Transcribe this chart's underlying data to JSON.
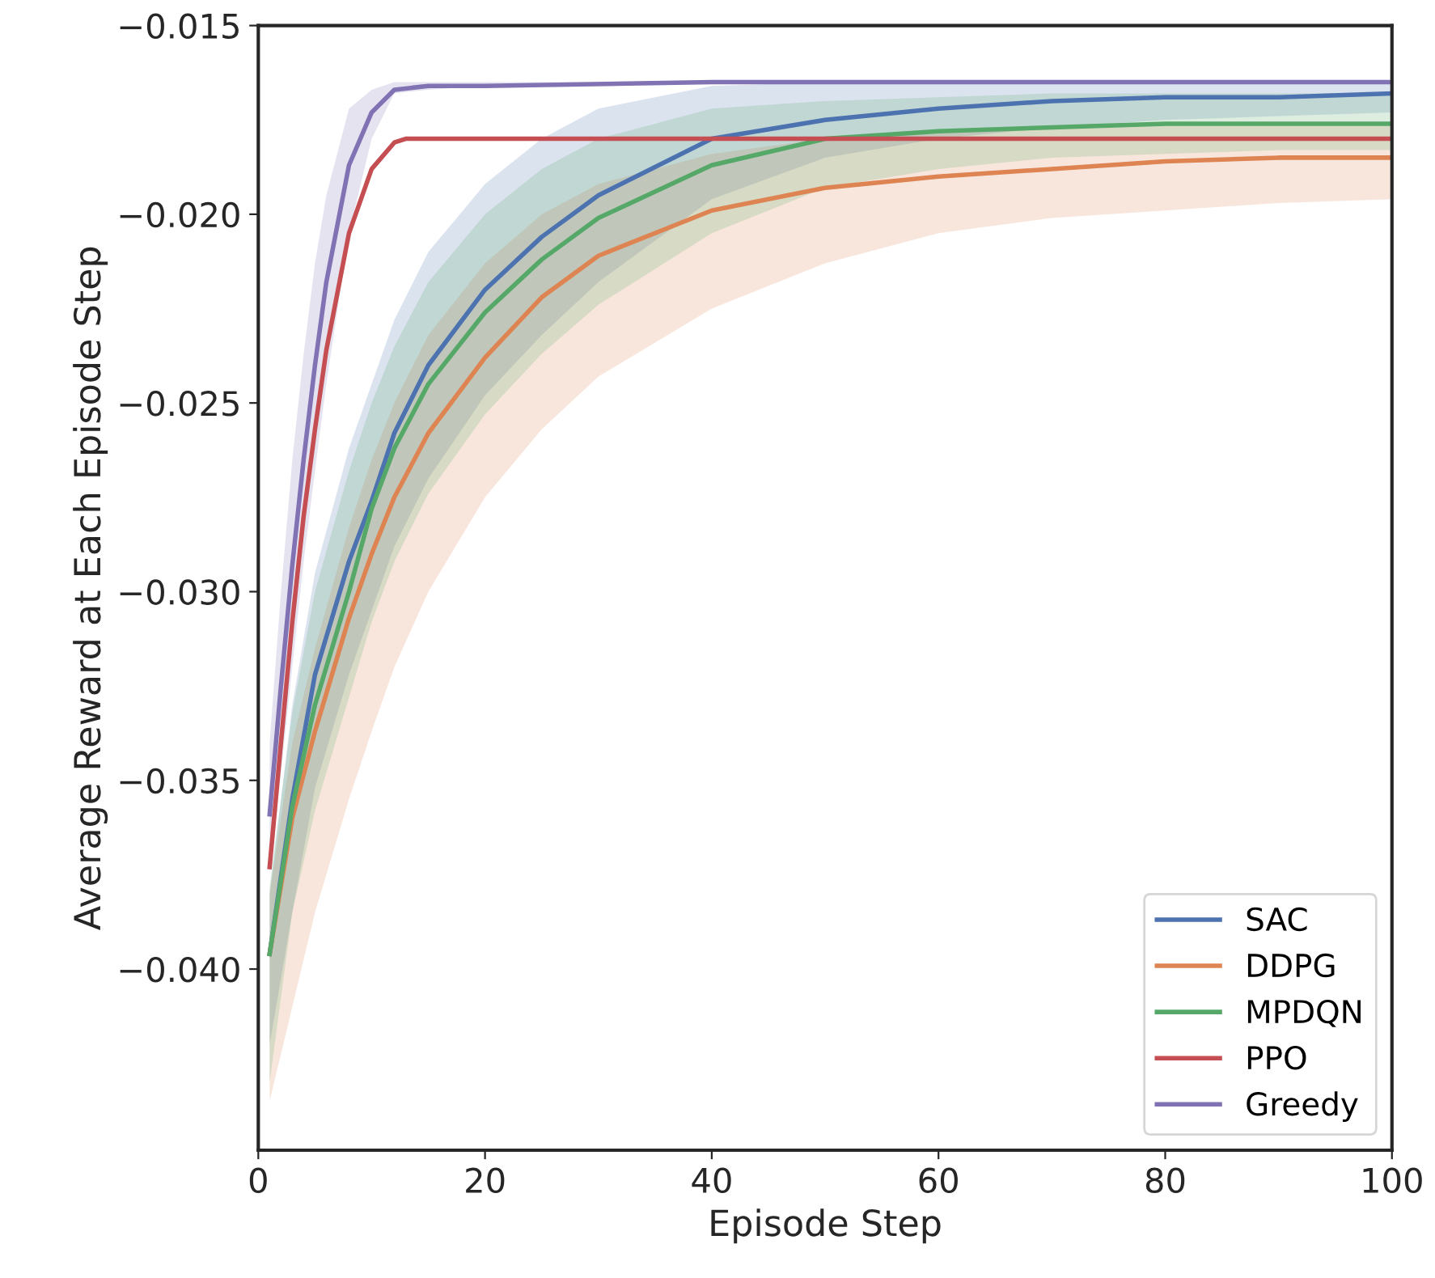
{
  "chart_data": {
    "type": "line",
    "xlabel": "Episode Step",
    "ylabel": "Average Reward at Each Episode Step",
    "xlim": [
      0,
      100
    ],
    "ylim": [
      -0.0448,
      -0.015
    ],
    "xticks": [
      0,
      20,
      40,
      60,
      80,
      100
    ],
    "yticks": [
      {
        "value": -0.04,
        "label": "−0.040"
      },
      {
        "value": -0.035,
        "label": "−0.035"
      },
      {
        "value": -0.03,
        "label": "−0.030"
      },
      {
        "value": -0.025,
        "label": "−0.025"
      },
      {
        "value": -0.02,
        "label": "−0.020"
      },
      {
        "value": -0.015,
        "label": "−0.015"
      }
    ],
    "grid": false,
    "legend": "bottom right",
    "marker": "none",
    "line_style": "solid",
    "series": [
      {
        "name": "SAC",
        "color": "#4c72b0",
        "x": [
          1,
          3,
          5,
          8,
          10,
          12,
          15,
          20,
          25,
          30,
          40,
          50,
          60,
          70,
          80,
          90,
          100
        ],
        "values": [
          -0.0396,
          -0.0355,
          -0.0322,
          -0.0292,
          -0.0276,
          -0.0258,
          -0.024,
          -0.022,
          -0.0206,
          -0.0195,
          -0.018,
          -0.0175,
          -0.0172,
          -0.017,
          -0.0169,
          -0.0169,
          -0.0168
        ],
        "upper": [
          -0.038,
          -0.033,
          -0.0295,
          -0.0262,
          -0.0245,
          -0.0228,
          -0.021,
          -0.0192,
          -0.018,
          -0.0172,
          -0.0166,
          -0.0165,
          -0.0165,
          -0.0165,
          -0.0165,
          -0.0165,
          -0.0165
        ],
        "lower": [
          -0.042,
          -0.0385,
          -0.0352,
          -0.0322,
          -0.0305,
          -0.0288,
          -0.027,
          -0.0248,
          -0.0232,
          -0.0218,
          -0.0196,
          -0.0185,
          -0.018,
          -0.0177,
          -0.0175,
          -0.0174,
          -0.0173
        ]
      },
      {
        "name": "DDPG",
        "color": "#dd8452",
        "x": [
          1,
          3,
          5,
          8,
          10,
          12,
          15,
          20,
          25,
          30,
          40,
          50,
          60,
          70,
          80,
          90,
          100
        ],
        "values": [
          -0.0396,
          -0.036,
          -0.0337,
          -0.0307,
          -0.029,
          -0.0275,
          -0.0258,
          -0.0238,
          -0.0222,
          -0.0211,
          -0.0199,
          -0.0193,
          -0.019,
          -0.0188,
          -0.0186,
          -0.0185,
          -0.0185
        ],
        "upper": [
          -0.038,
          -0.034,
          -0.0315,
          -0.0283,
          -0.0265,
          -0.025,
          -0.0232,
          -0.0213,
          -0.02,
          -0.0192,
          -0.0184,
          -0.018,
          -0.0178,
          -0.0177,
          -0.0176,
          -0.0176,
          -0.0176
        ],
        "lower": [
          -0.0435,
          -0.041,
          -0.0385,
          -0.0355,
          -0.0337,
          -0.032,
          -0.03,
          -0.0275,
          -0.0257,
          -0.0243,
          -0.0225,
          -0.0213,
          -0.0205,
          -0.0201,
          -0.0199,
          -0.0197,
          -0.0196
        ]
      },
      {
        "name": "MPDQN",
        "color": "#55a868",
        "x": [
          1,
          3,
          5,
          8,
          10,
          12,
          15,
          20,
          25,
          30,
          40,
          50,
          60,
          70,
          80,
          90,
          100
        ],
        "values": [
          -0.0396,
          -0.0357,
          -0.033,
          -0.03,
          -0.0278,
          -0.0262,
          -0.0245,
          -0.0226,
          -0.0212,
          -0.0201,
          -0.0187,
          -0.018,
          -0.0178,
          -0.0177,
          -0.0176,
          -0.0176,
          -0.0176
        ],
        "upper": [
          -0.0378,
          -0.0332,
          -0.03,
          -0.0268,
          -0.025,
          -0.0235,
          -0.0218,
          -0.02,
          -0.0188,
          -0.018,
          -0.0172,
          -0.017,
          -0.0169,
          -0.0168,
          -0.0168,
          -0.0168,
          -0.0168
        ],
        "lower": [
          -0.043,
          -0.0385,
          -0.0358,
          -0.0328,
          -0.0308,
          -0.0292,
          -0.0274,
          -0.0253,
          -0.0237,
          -0.0224,
          -0.0205,
          -0.0193,
          -0.0188,
          -0.0185,
          -0.0184,
          -0.0183,
          -0.0183
        ]
      },
      {
        "name": "PPO",
        "color": "#c44e52",
        "x": [
          1,
          2,
          3,
          4,
          5,
          6,
          8,
          10,
          12,
          13,
          20,
          40,
          60,
          80,
          100
        ],
        "values": [
          -0.0373,
          -0.034,
          -0.0308,
          -0.028,
          -0.0257,
          -0.0236,
          -0.0205,
          -0.0188,
          -0.0181,
          -0.018,
          -0.018,
          -0.018,
          -0.018,
          -0.018,
          -0.018
        ]
      },
      {
        "name": "Greedy",
        "color": "#8172b3",
        "x": [
          1,
          2,
          3,
          4,
          5,
          6,
          8,
          10,
          12,
          15,
          20,
          40,
          60,
          80,
          100
        ],
        "values": [
          -0.0359,
          -0.0325,
          -0.0293,
          -0.0265,
          -0.024,
          -0.0218,
          -0.0187,
          -0.0173,
          -0.0167,
          -0.0166,
          -0.0166,
          -0.0165,
          -0.0165,
          -0.0165,
          -0.0165
        ],
        "upper": [
          -0.034,
          -0.03,
          -0.0265,
          -0.0237,
          -0.0213,
          -0.0195,
          -0.0172,
          -0.0167,
          -0.0165,
          -0.0165,
          -0.0165,
          -0.0165,
          -0.0165,
          -0.0165,
          -0.0165
        ],
        "lower": [
          -0.0375,
          -0.0348,
          -0.032,
          -0.0292,
          -0.0268,
          -0.0245,
          -0.0205,
          -0.018,
          -0.0168,
          -0.0167,
          -0.0166,
          -0.0165,
          -0.0165,
          -0.0165,
          -0.0165
        ]
      }
    ]
  }
}
